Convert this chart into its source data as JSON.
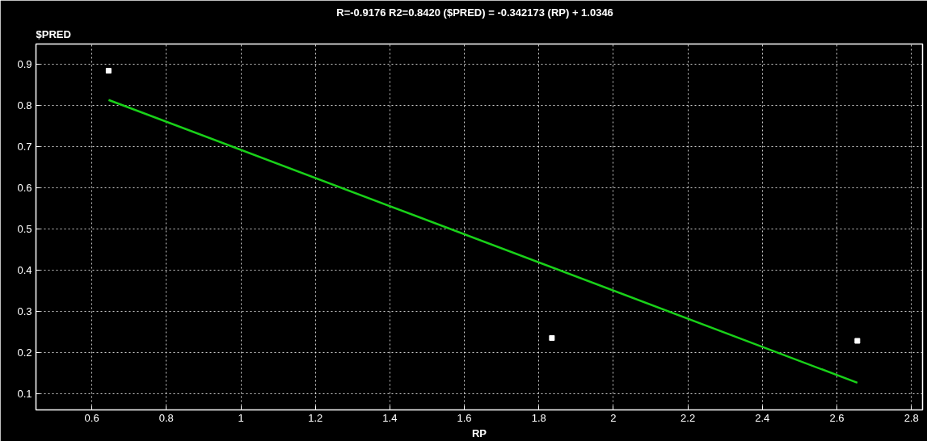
{
  "chart_data": {
    "type": "scatter",
    "title": "R=-0.9176 R2=0.8420    ($PRED) = -0.342173 (RP) + 1.0346",
    "xlabel": "RP",
    "ylabel": "$PRED",
    "series": [
      {
        "color": "#ffffff",
        "x": [
          0.645,
          1.835,
          2.655
        ],
        "values": [
          0.885,
          0.235,
          0.228
        ],
        "marker": "square"
      },
      {
        "type": "line",
        "color": "#19d119",
        "x": [
          0.645,
          2.655
        ],
        "values": [
          0.814,
          0.126
        ]
      }
    ],
    "xlim": [
      0.45,
      2.83
    ],
    "ylim": [
      0.06,
      0.95
    ],
    "xticks": [
      0.6,
      0.8,
      1,
      1.2,
      1.4,
      1.6,
      1.8,
      2,
      2.2,
      2.4,
      2.6,
      2.8
    ],
    "yticks": [
      0.1,
      0.2,
      0.3,
      0.4,
      0.5,
      0.6,
      0.7,
      0.8,
      0.9
    ],
    "grid": true
  }
}
